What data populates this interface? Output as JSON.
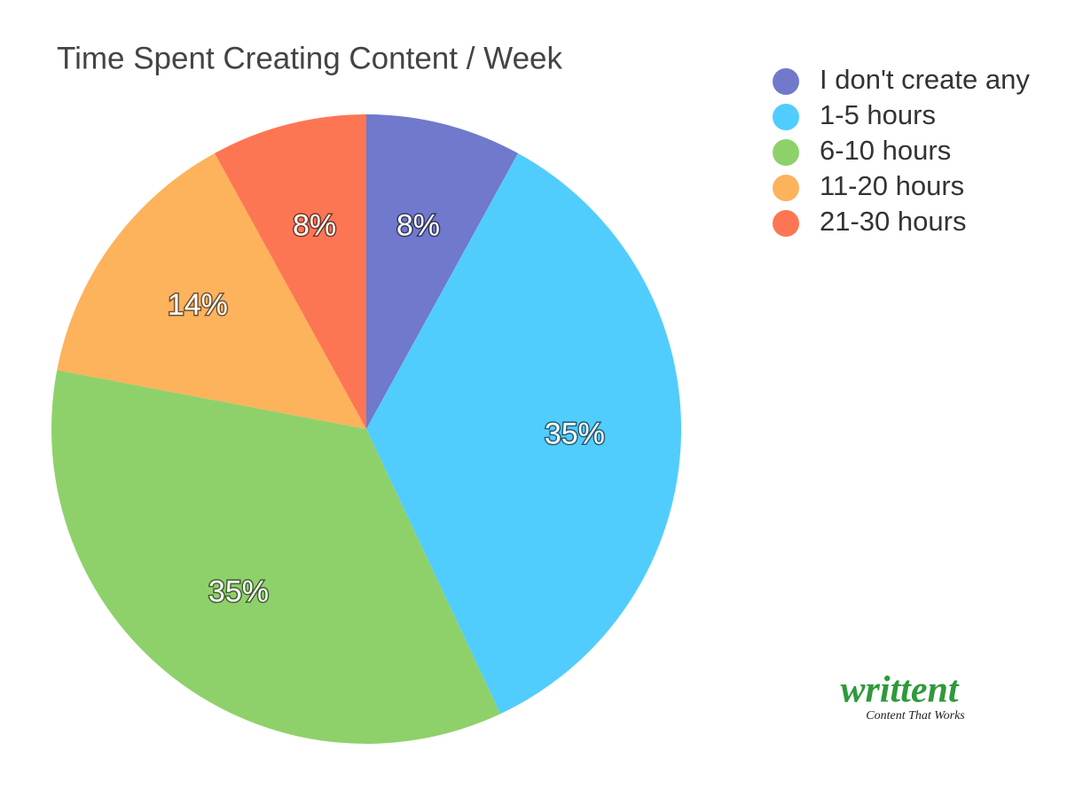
{
  "chart_data": {
    "type": "pie",
    "title": "Time Spent Creating Content / Week",
    "categories": [
      "I don't create any",
      "1-5 hours",
      "6-10 hours",
      "11-20 hours",
      "21-30 hours"
    ],
    "values": [
      8,
      35,
      35,
      14,
      8
    ],
    "value_labels": [
      "8%",
      "35%",
      "35%",
      "14%",
      "8%"
    ],
    "colors": [
      "#7079cc",
      "#50cdfd",
      "#8ed16a",
      "#fdb25c",
      "#fd7654"
    ],
    "legend": "top-right"
  },
  "logo": {
    "name": "writtent",
    "tagline": "Content That Works"
  }
}
